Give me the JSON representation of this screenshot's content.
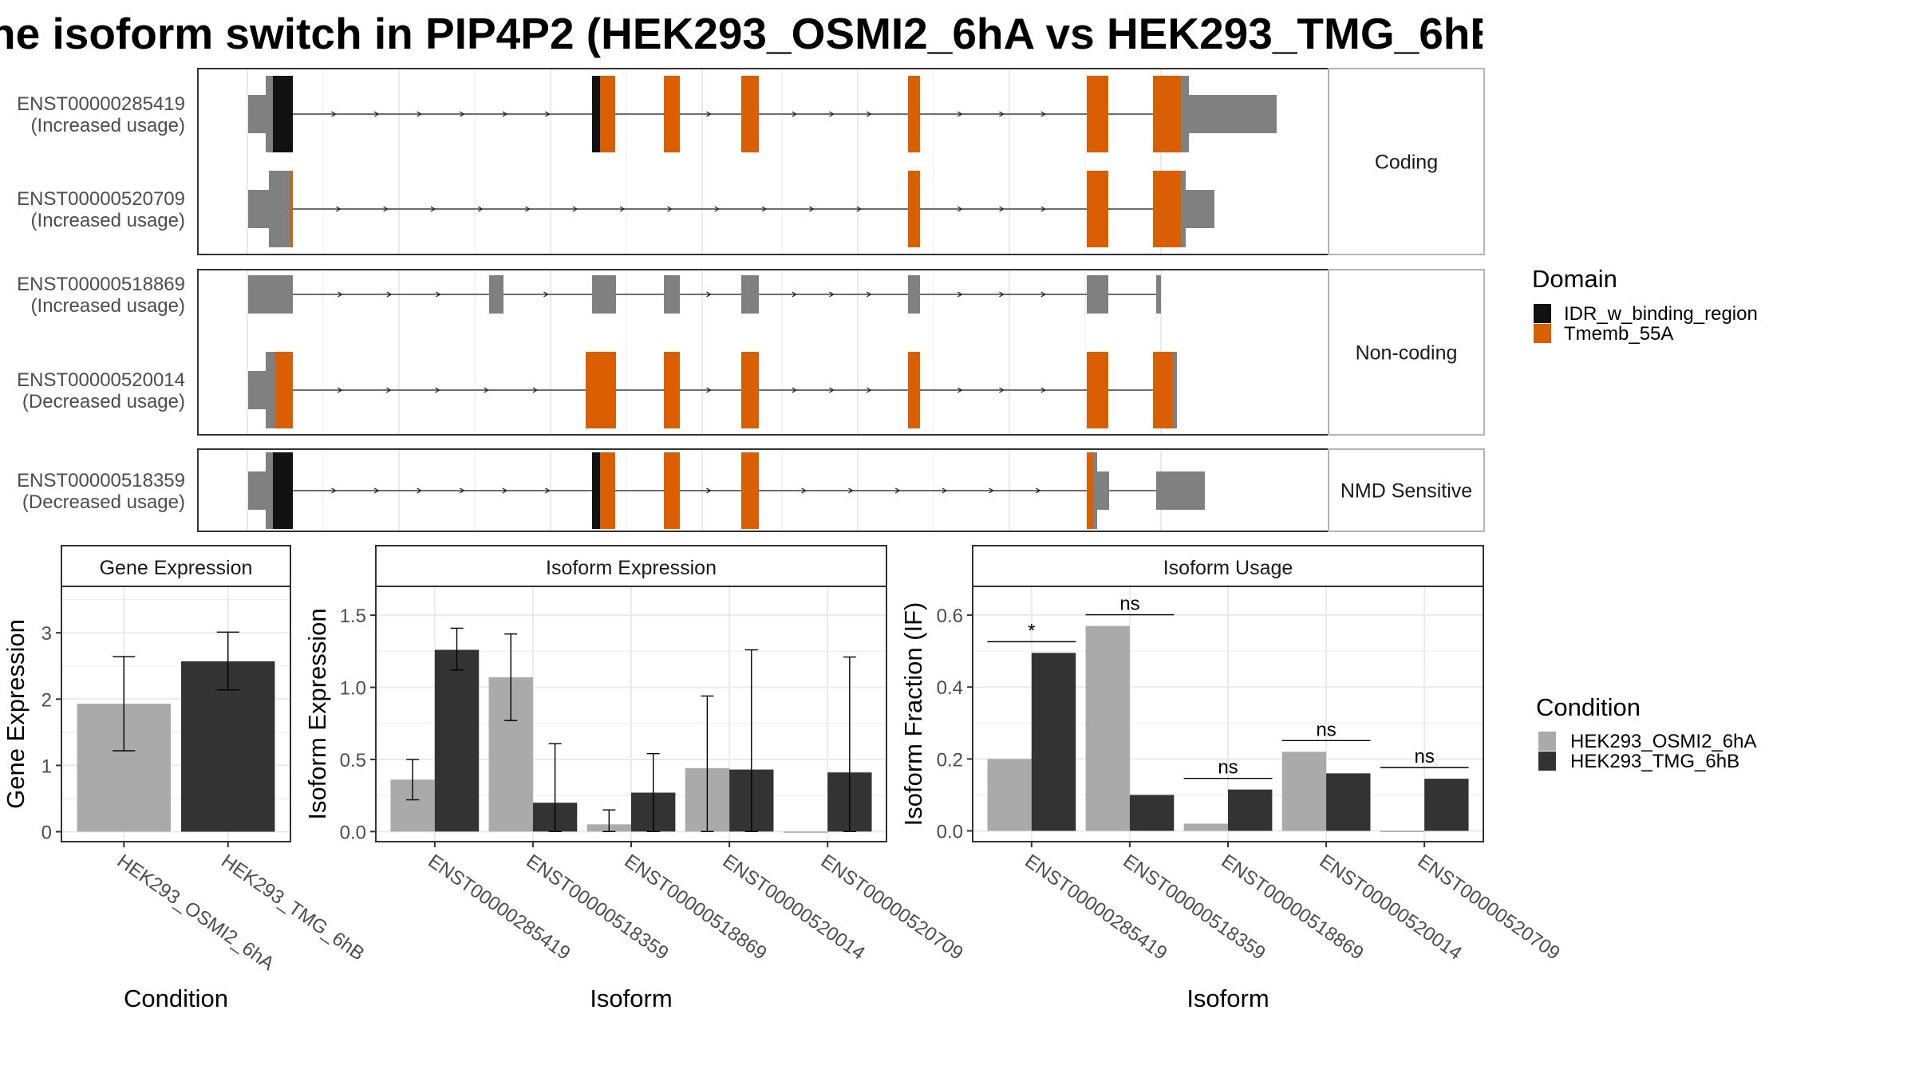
{
  "title": "he isoform switch in PIP4P2 (HEK293_OSMI2_6hA vs HEK293_TMG_6hB",
  "colors": {
    "idr": "#111111",
    "tmemb": "#d95f02",
    "utr": "#808080",
    "cond_a": "#aaaaaa",
    "cond_b": "#333333",
    "grid": "#ebebeb",
    "strip_border": "#b3b3b3"
  },
  "structure": {
    "domain_legend": {
      "title": "Domain",
      "items": [
        {
          "key": "idr",
          "label": "IDR_w_binding_region"
        },
        {
          "key": "tmemb",
          "label": "Tmemb_55A"
        }
      ]
    },
    "panels": [
      {
        "label": "Coding",
        "transcripts": [
          {
            "id": "ENST00000285419",
            "usage": "(Increased usage)"
          },
          {
            "id": "ENST00000520709",
            "usage": "(Increased usage)"
          }
        ]
      },
      {
        "label": "Non-coding",
        "transcripts": [
          {
            "id": "ENST00000518869",
            "usage": "(Increased usage)"
          },
          {
            "id": "ENST00000520014",
            "usage": "(Decreased usage)"
          }
        ]
      },
      {
        "label": "NMD Sensitive",
        "transcripts": [
          {
            "id": "ENST00000518359",
            "usage": "(Decreased usage)"
          }
        ]
      }
    ]
  },
  "chart_data": [
    {
      "type": "bar",
      "title": "Gene Expression",
      "xlabel": "Condition",
      "ylabel": "Gene Expression",
      "ylim": [
        -0.15,
        3.7
      ],
      "yticks": [
        0,
        1,
        2,
        3
      ],
      "categories": [
        "HEK293_OSMI2_6hA",
        "HEK293_TMG_6hB"
      ],
      "values": [
        1.93,
        2.57
      ],
      "err_low": [
        1.22,
        2.14
      ],
      "err_high": [
        2.64,
        3.01
      ]
    },
    {
      "type": "bar",
      "title": "Isoform Expression",
      "xlabel": "Isoform",
      "ylabel": "Isoform Expression",
      "ylim": [
        -0.07,
        1.7
      ],
      "yticks": [
        0.0,
        0.5,
        1.0,
        1.5
      ],
      "categories": [
        "ENST00000285419",
        "ENST00000518359",
        "ENST00000518869",
        "ENST00000520014",
        "ENST00000520709"
      ],
      "series": [
        {
          "name": "HEK293_OSMI2_6hA",
          "values": [
            0.36,
            1.07,
            0.05,
            0.44,
            0.0
          ],
          "err_low": [
            0.22,
            0.77,
            0.0,
            0.0,
            0.0
          ],
          "err_high": [
            0.5,
            1.37,
            0.15,
            0.94,
            0.0
          ]
        },
        {
          "name": "HEK293_TMG_6hB",
          "values": [
            1.26,
            0.2,
            0.27,
            0.43,
            0.41
          ],
          "err_low": [
            1.12,
            0.0,
            0.0,
            0.0,
            0.0
          ],
          "err_high": [
            1.41,
            0.61,
            0.54,
            1.26,
            1.21
          ]
        }
      ],
      "legend": {
        "title": "Condition",
        "position": "right"
      }
    },
    {
      "type": "bar",
      "title": "Isoform Usage",
      "xlabel": "Isoform",
      "ylabel": "Isoform Fraction (IF)",
      "ylim": [
        -0.03,
        0.68
      ],
      "yticks": [
        0.0,
        0.2,
        0.4,
        0.6
      ],
      "categories": [
        "ENST00000285419",
        "ENST00000518359",
        "ENST00000518869",
        "ENST00000520014",
        "ENST00000520709"
      ],
      "series": [
        {
          "name": "HEK293_OSMI2_6hA",
          "values": [
            0.2,
            0.57,
            0.02,
            0.22,
            0.0
          ]
        },
        {
          "name": "HEK293_TMG_6hB",
          "values": [
            0.495,
            0.1,
            0.115,
            0.16,
            0.145
          ]
        }
      ],
      "significance": [
        "*",
        "ns",
        "ns",
        "ns",
        "ns"
      ]
    }
  ]
}
